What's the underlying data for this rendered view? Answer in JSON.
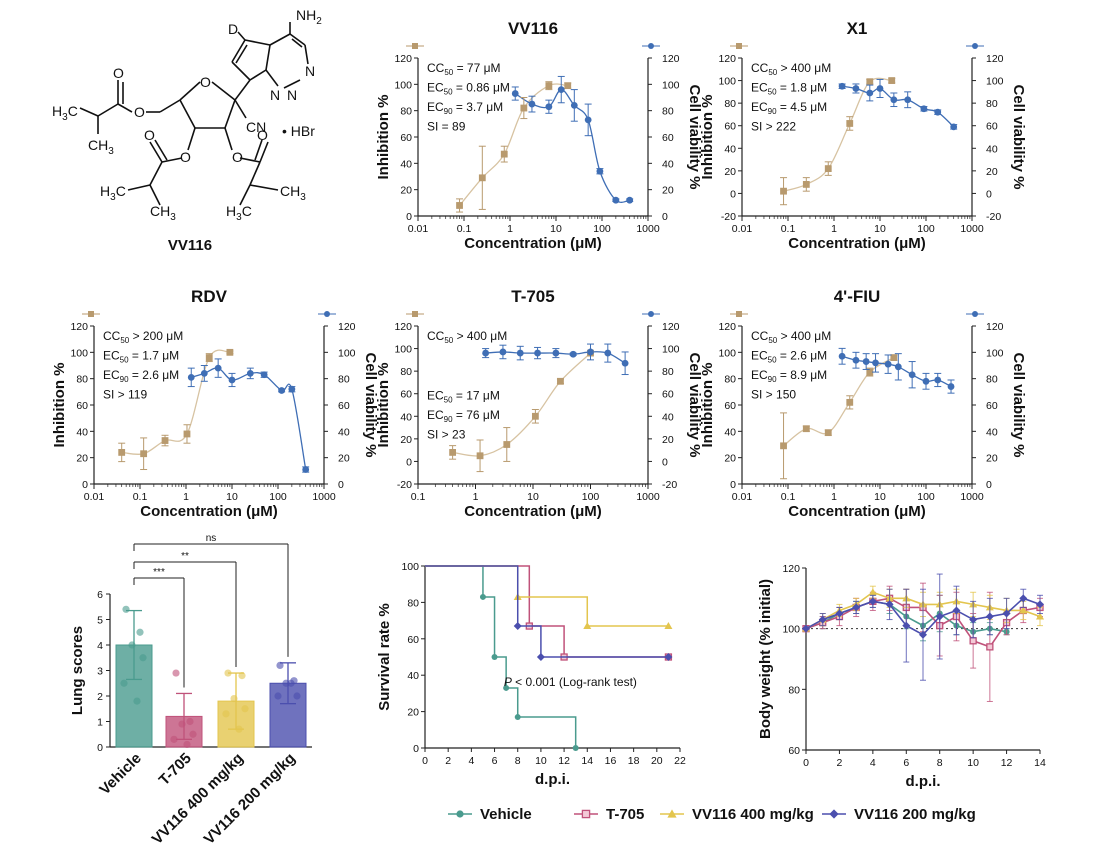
{
  "colors": {
    "inhibition": "#b89a6e",
    "inhibition_fit": "#d7c3a2",
    "viability": "#3f6eb5",
    "vehicle": "#4a9b8e",
    "t705": "#c0527a",
    "vv116_400": "#e3c54e",
    "vv116_200": "#4b4fae",
    "axis": "#222222"
  },
  "compound": {
    "name": "VV116",
    "atoms": {
      "nh2": "NH",
      "nh2_sub": "2",
      "d": "D",
      "n1": "N",
      "n2": "N",
      "n3": "N",
      "o_ring": "O",
      "cn": "CN",
      "hbr": "• HBr",
      "h3c_a": "H",
      "h3c_a_sub": "3",
      "h3c_a_c": "C",
      "ch3_a": "CH",
      "ch3_a_sub": "3",
      "h3c_b": "H",
      "h3c_b_sub": "3",
      "h3c_b_c": "C",
      "ch3_b": "CH",
      "ch3_b_sub": "3",
      "h3c_c": "H",
      "h3c_c_sub": "3",
      "h3c_c_c": "C",
      "ch3_c": "CH",
      "ch3_c_sub": "3"
    }
  },
  "chart_data": [
    {
      "type": "scatter",
      "title": "VV116",
      "xlabel": "Concentration (μM)",
      "ylabel_left": "Inhibition %",
      "ylabel_right": "Cell viability %",
      "x_scale": "log",
      "xlim": [
        0.01,
        1000
      ],
      "xticks": [
        "0.01",
        "0.1",
        "1",
        "10",
        "100",
        "1000"
      ],
      "ylim": [
        0,
        120
      ],
      "yticks": [
        "0",
        "20",
        "40",
        "60",
        "80",
        "100",
        "120"
      ],
      "annotations": [
        {
          "pre": "CC",
          "sub": "50",
          "post": " = 77 μM"
        },
        {
          "pre": "EC",
          "sub": "50",
          "post": " = 0.86 μM"
        },
        {
          "pre": "EC",
          "sub": "90",
          "post": " = 3.7 μM"
        },
        {
          "pre": "SI = 89",
          "sub": "",
          "post": ""
        }
      ],
      "series": [
        {
          "role": "inhibition",
          "x": [
            0.08,
            0.25,
            0.75,
            2,
            7,
            18
          ],
          "y": [
            8,
            29,
            47,
            82,
            99,
            99
          ],
          "err": [
            5,
            24,
            6,
            8,
            3,
            2
          ]
        },
        {
          "role": "viability",
          "x": [
            1.3,
            3,
            7,
            13,
            25,
            50,
            90,
            200,
            400
          ],
          "y": [
            93,
            85,
            83,
            96,
            84,
            73,
            34,
            12,
            12
          ],
          "err": [
            5,
            6,
            5,
            10,
            12,
            12,
            2,
            1,
            1
          ]
        }
      ]
    },
    {
      "type": "scatter",
      "title": "X1",
      "xlabel": "Concentration (μM)",
      "ylabel_left": "Inhibition %",
      "ylabel_right": "Cell viability %",
      "x_scale": "log",
      "xlim": [
        0.01,
        1000
      ],
      "xticks": [
        "0.01",
        "0.1",
        "1",
        "10",
        "100",
        "1000"
      ],
      "ylim": [
        -20,
        120
      ],
      "yticks": [
        "-20",
        "0",
        "20",
        "40",
        "60",
        "80",
        "100",
        "120"
      ],
      "annotations": [
        {
          "pre": "CC",
          "sub": "50",
          "post": " > 400 μM"
        },
        {
          "pre": "EC",
          "sub": "50",
          "post": " = 1.8 μM"
        },
        {
          "pre": "EC",
          "sub": "90",
          "post": " = 4.5 μM"
        },
        {
          "pre": "SI > 222",
          "sub": "",
          "post": ""
        }
      ],
      "series": [
        {
          "role": "inhibition",
          "x": [
            0.08,
            0.25,
            0.75,
            2.2,
            6,
            18
          ],
          "y": [
            2,
            8,
            22,
            62,
            99,
            100
          ],
          "err": [
            12,
            6,
            6,
            6,
            2,
            2
          ]
        },
        {
          "role": "viability",
          "x": [
            1.5,
            3,
            6,
            10,
            20,
            40,
            90,
            180,
            400
          ],
          "y": [
            95,
            93,
            89,
            93,
            83,
            83,
            75,
            72,
            59
          ],
          "err": [
            2,
            4,
            7,
            8,
            6,
            7,
            2,
            2,
            2
          ]
        }
      ]
    },
    {
      "type": "scatter",
      "title": "RDV",
      "xlabel": "Concentration (μM)",
      "ylabel_left": "Inhibition %",
      "ylabel_right": "Cell viability %",
      "x_scale": "log",
      "xlim": [
        0.01,
        1000
      ],
      "xticks": [
        "0.01",
        "0.1",
        "1",
        "10",
        "100",
        "1000"
      ],
      "ylim": [
        0,
        120
      ],
      "yticks": [
        "0",
        "20",
        "40",
        "60",
        "80",
        "100",
        "120"
      ],
      "annotations": [
        {
          "pre": "CC",
          "sub": "50",
          "post": " > 200 μM"
        },
        {
          "pre": "EC",
          "sub": "50",
          "post": " = 1.7 μM"
        },
        {
          "pre": "EC",
          "sub": "90",
          "post": " = 2.6 μM"
        },
        {
          "pre": "SI > 119",
          "sub": "",
          "post": ""
        }
      ],
      "series": [
        {
          "role": "inhibition",
          "x": [
            0.04,
            0.12,
            0.35,
            1.05,
            3.2,
            9
          ],
          "y": [
            24,
            23,
            33,
            38,
            96,
            100
          ],
          "err": [
            7,
            12,
            4,
            7,
            3,
            1
          ]
        },
        {
          "role": "viability",
          "x": [
            1.3,
            2.5,
            5,
            10,
            25,
            50,
            120,
            200,
            400
          ],
          "y": [
            81,
            84,
            88,
            79,
            84,
            83,
            71,
            72,
            11
          ],
          "err": [
            7,
            6,
            7,
            5,
            4,
            2,
            1,
            2,
            2
          ]
        }
      ]
    },
    {
      "type": "scatter",
      "title": "T-705",
      "xlabel": "Concentration (μM)",
      "ylabel_left": "Inhibition %",
      "ylabel_right": "Cell viability %",
      "x_scale": "log",
      "xlim": [
        0.1,
        1000
      ],
      "xticks": [
        "0.1",
        "1",
        "10",
        "100",
        "1000"
      ],
      "ylim": [
        -20,
        120
      ],
      "yticks": [
        "-20",
        "0",
        "20",
        "40",
        "60",
        "80",
        "100",
        "120"
      ],
      "annotations": [
        {
          "pre": "CC",
          "sub": "50",
          "post": " > 400 μM"
        },
        {
          "pre": "EC",
          "sub": "50",
          "post": " = 17 μM"
        },
        {
          "pre": "EC",
          "sub": "90",
          "post": " = 76 μM"
        },
        {
          "pre": "SI > 23",
          "sub": "",
          "post": ""
        }
      ],
      "series": [
        {
          "role": "inhibition",
          "x": [
            0.4,
            1.2,
            3.5,
            11,
            30,
            100
          ],
          "y": [
            8,
            5,
            15,
            40,
            71,
            96
          ],
          "err": [
            6,
            14,
            15,
            6,
            2,
            1
          ]
        },
        {
          "role": "viability",
          "x": [
            1.5,
            3,
            6,
            12,
            25,
            50,
            100,
            200,
            400
          ],
          "y": [
            96,
            97,
            96,
            96,
            96,
            95,
            97,
            96,
            87
          ],
          "err": [
            4,
            6,
            6,
            5,
            4,
            1,
            7,
            8,
            10
          ]
        }
      ]
    },
    {
      "type": "scatter",
      "title": "4'-FIU",
      "xlabel": "Concentration (μM)",
      "ylabel_left": "Inhibition %",
      "ylabel_right": "Cell viability %",
      "x_scale": "log",
      "xlim": [
        0.01,
        1000
      ],
      "xticks": [
        "0.01",
        "0.1",
        "1",
        "10",
        "100",
        "1000"
      ],
      "ylim": [
        0,
        120
      ],
      "yticks": [
        "0",
        "20",
        "40",
        "60",
        "80",
        "100",
        "120"
      ],
      "annotations": [
        {
          "pre": "CC",
          "sub": "50",
          "post": " > 400 μM"
        },
        {
          "pre": "EC",
          "sub": "50",
          "post": " = 2.6 μM"
        },
        {
          "pre": "EC",
          "sub": "90",
          "post": " = 8.9 μM"
        },
        {
          "pre": "SI > 150",
          "sub": "",
          "post": ""
        }
      ],
      "series": [
        {
          "role": "inhibition",
          "x": [
            0.08,
            0.25,
            0.75,
            2.2,
            6,
            20
          ],
          "y": [
            29,
            42,
            39,
            62,
            85,
            96
          ],
          "err": [
            25,
            2,
            2,
            5,
            3,
            2
          ]
        },
        {
          "role": "viability",
          "x": [
            1.5,
            3,
            5,
            8,
            15,
            25,
            50,
            100,
            180,
            350
          ],
          "y": [
            97,
            94,
            93,
            92,
            91,
            89,
            83,
            78,
            79,
            74
          ],
          "err": [
            6,
            6,
            6,
            7,
            7,
            10,
            10,
            6,
            5,
            5
          ]
        }
      ]
    },
    {
      "type": "bar",
      "ylabel": "Lung scores",
      "ylim": [
        0,
        6
      ],
      "yticks": [
        "0",
        "1",
        "2",
        "3",
        "4",
        "5",
        "6"
      ],
      "categories": [
        "Vehicle",
        "T-705",
        "VV116 400 mg/kg",
        "VV116 200 mg/kg"
      ],
      "values": [
        4.0,
        1.2,
        1.8,
        2.5
      ],
      "errors": [
        1.35,
        0.9,
        1.1,
        0.8
      ],
      "points": [
        [
          5.4,
          4.5,
          4.0,
          3.5,
          2.5,
          1.8
        ],
        [
          2.9,
          1.0,
          0.9,
          0.5,
          0.3,
          0.1
        ],
        [
          2.9,
          2.8,
          1.9,
          1.5,
          1.3,
          0.7
        ],
        [
          3.2,
          2.6,
          2.5,
          2.0,
          2.0,
          2.5
        ]
      ],
      "significance": [
        {
          "compare": [
            "Vehicle",
            "VV116 200 mg/kg"
          ],
          "label": "ns"
        },
        {
          "compare": [
            "Vehicle",
            "VV116 400 mg/kg"
          ],
          "label": "**"
        },
        {
          "compare": [
            "Vehicle",
            "T-705"
          ],
          "label": "***"
        }
      ]
    },
    {
      "type": "line",
      "step": true,
      "xlabel": "d.p.i.",
      "ylabel": "Survival rate %",
      "xlim": [
        0,
        22
      ],
      "xticks": [
        "0",
        "2",
        "4",
        "6",
        "8",
        "10",
        "12",
        "14",
        "16",
        "18",
        "20",
        "22"
      ],
      "ylim": [
        0,
        100
      ],
      "yticks": [
        "0",
        "20",
        "40",
        "60",
        "80",
        "100"
      ],
      "annotation": {
        "p": "P",
        "rest": " < 0.001 (Log-rank test)"
      },
      "series": [
        {
          "name": "Vehicle",
          "x": [
            0,
            5,
            6,
            7,
            8,
            13
          ],
          "y": [
            100,
            83,
            50,
            33,
            17,
            0
          ]
        },
        {
          "name": "T-705",
          "x": [
            0,
            9,
            12,
            21
          ],
          "y": [
            100,
            67,
            50,
            50
          ]
        },
        {
          "name": "VV116 400 mg/kg",
          "x": [
            0,
            8,
            14,
            21
          ],
          "y": [
            100,
            83,
            67,
            67
          ]
        },
        {
          "name": "VV116 200 mg/kg",
          "x": [
            0,
            8,
            10,
            21
          ],
          "y": [
            100,
            67,
            50,
            50
          ]
        }
      ]
    },
    {
      "type": "line",
      "xlabel": "d.p.i.",
      "ylabel": "Body weight (% initial)",
      "xlim": [
        0,
        14
      ],
      "xticks": [
        "0",
        "2",
        "4",
        "6",
        "8",
        "10",
        "12",
        "14"
      ],
      "ylim": [
        60,
        120
      ],
      "yticks": [
        "60",
        "80",
        "100",
        "120"
      ],
      "reference_y": 100,
      "x": [
        0,
        1,
        2,
        3,
        4,
        5,
        6,
        7,
        8,
        9,
        10,
        11,
        12,
        13,
        14
      ],
      "series": [
        {
          "name": "Vehicle",
          "values": [
            100,
            102,
            105,
            107,
            109,
            108,
            104,
            101,
            105,
            101,
            99,
            100,
            99,
            null,
            null
          ],
          "err": [
            0,
            2,
            2,
            2,
            2,
            3,
            4,
            5,
            6,
            3,
            3,
            2,
            1,
            null,
            null
          ]
        },
        {
          "name": "T-705",
          "values": [
            100,
            102,
            104,
            107,
            109,
            110,
            107,
            107,
            101,
            104,
            96,
            94,
            102,
            106,
            107
          ],
          "err": [
            0,
            2,
            3,
            3,
            3,
            4,
            6,
            8,
            10,
            8,
            9,
            18,
            4,
            4,
            3
          ]
        },
        {
          "name": "VV116 400 mg/kg",
          "values": [
            100,
            103,
            106,
            108,
            112,
            110,
            110,
            108,
            108,
            109,
            108,
            107,
            106,
            106,
            104
          ],
          "err": [
            0,
            2,
            2,
            2,
            2,
            3,
            3,
            4,
            4,
            4,
            4,
            4,
            4,
            3,
            3
          ]
        },
        {
          "name": "VV116 200 mg/kg",
          "values": [
            100,
            103,
            105,
            107,
            109,
            108,
            101,
            98,
            104,
            106,
            103,
            104,
            105,
            110,
            108
          ],
          "err": [
            0,
            2,
            2,
            2,
            2,
            5,
            12,
            15,
            14,
            8,
            6,
            6,
            5,
            3,
            3
          ]
        }
      ]
    }
  ]
}
